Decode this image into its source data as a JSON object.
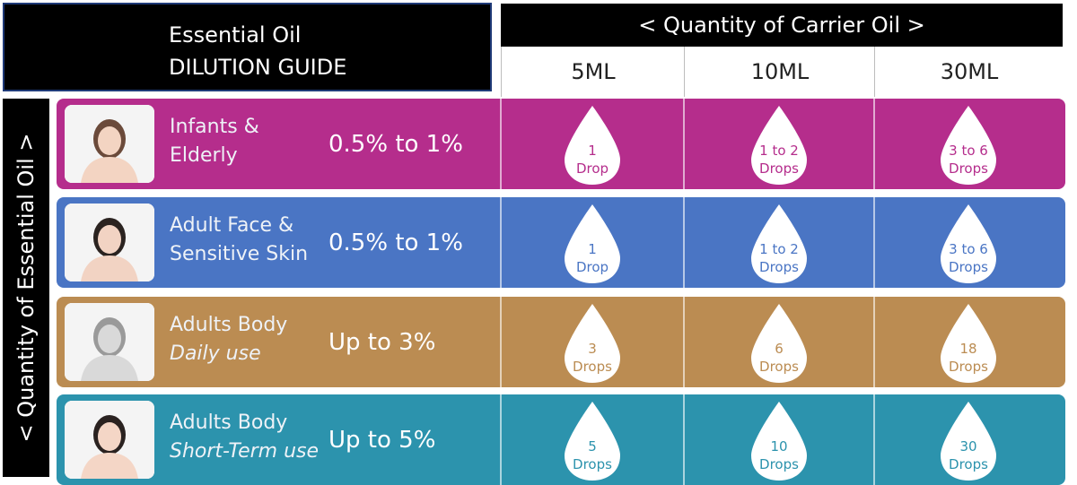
{
  "title": {
    "line1": "Essential Oil",
    "line2": "DILUTION GUIDE"
  },
  "carrier_header": "<  Quantity of Carrier Oil  >",
  "columns": [
    "5ML",
    "10ML",
    "30ML"
  ],
  "side_header": "<  Quantity of Essential Oil  >",
  "rows": [
    {
      "label1": "Infants &",
      "label2": "Elderly",
      "label2_italic": false,
      "pct": "0.5% to 1%",
      "color": "#b52d8c",
      "text_color": "#b52d8c",
      "drops": [
        [
          "1",
          "Drop"
        ],
        [
          "1 to 2",
          "Drops"
        ],
        [
          "3 to 6",
          "Drops"
        ]
      ]
    },
    {
      "label1": "Adult Face &",
      "label2": "Sensitive Skin",
      "label2_italic": false,
      "pct": "0.5% to 1%",
      "color": "#4a75c4",
      "text_color": "#4a75c4",
      "drops": [
        [
          "1",
          "Drop"
        ],
        [
          "1 to 2",
          "Drops"
        ],
        [
          "3 to 6",
          "Drops"
        ]
      ]
    },
    {
      "label1": "Adults Body",
      "label2": "Daily use",
      "label2_italic": true,
      "pct": "Up to 3%",
      "color": "#bb8c52",
      "text_color": "#bb8c52",
      "drops": [
        [
          "3",
          "Drops"
        ],
        [
          "6",
          "Drops"
        ],
        [
          "18",
          "Drops"
        ]
      ]
    },
    {
      "label1": "Adults Body",
      "label2": "Short-Term use",
      "label2_italic": true,
      "pct": "Up to 5%",
      "color": "#2c93ad",
      "text_color": "#2c93ad",
      "drops": [
        [
          "5",
          "Drops"
        ],
        [
          "10",
          "Drops"
        ],
        [
          "30",
          "Drops"
        ]
      ]
    }
  ]
}
